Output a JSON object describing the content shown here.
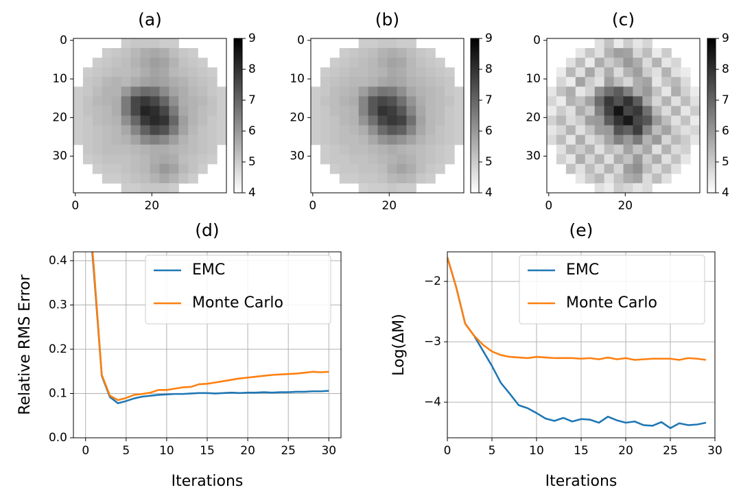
{
  "chart_data": [
    {
      "type": "heatmap",
      "title": "(a)",
      "colormap": "gray_r",
      "xlim": [
        -0.5,
        39.5
      ],
      "ylim": [
        39.5,
        -0.5
      ],
      "xticks": [
        0,
        20
      ],
      "yticks": [
        0,
        10,
        20,
        30
      ],
      "clim": [
        4,
        9
      ],
      "cticks": [
        4,
        5,
        6,
        7,
        8,
        9
      ],
      "z": [
        [
          null,
          null,
          null,
          null,
          null,
          5.0,
          5.1,
          5.1,
          5.1,
          5.0,
          5.0,
          null,
          null,
          null,
          null,
          null
        ],
        [
          null,
          null,
          null,
          5.0,
          5.1,
          5.2,
          5.4,
          5.6,
          5.7,
          5.6,
          5.3,
          5.1,
          5.0,
          null,
          null,
          null
        ],
        [
          null,
          null,
          5.0,
          5.1,
          5.2,
          5.3,
          5.5,
          5.7,
          5.9,
          5.8,
          5.5,
          5.2,
          5.1,
          5.0,
          null,
          null
        ],
        [
          null,
          5.0,
          5.1,
          5.2,
          5.3,
          5.3,
          5.4,
          5.6,
          5.8,
          5.7,
          5.4,
          5.3,
          5.2,
          5.1,
          5.0,
          null
        ],
        [
          null,
          5.1,
          5.2,
          5.4,
          5.5,
          5.4,
          5.6,
          5.8,
          5.9,
          5.8,
          5.6,
          5.5,
          5.3,
          5.2,
          5.1,
          null
        ],
        [
          5.0,
          5.1,
          5.3,
          5.5,
          5.5,
          6.0,
          6.6,
          6.9,
          6.8,
          6.3,
          5.8,
          5.6,
          5.4,
          5.3,
          5.1,
          5.0
        ],
        [
          5.0,
          5.2,
          5.4,
          5.5,
          5.6,
          6.6,
          7.6,
          7.9,
          7.6,
          7.0,
          6.2,
          5.6,
          5.5,
          5.4,
          5.2,
          5.0
        ],
        [
          5.0,
          5.2,
          5.3,
          5.4,
          5.6,
          6.6,
          7.6,
          8.3,
          8.1,
          7.6,
          6.6,
          5.7,
          5.5,
          5.3,
          5.2,
          5.0
        ],
        [
          5.0,
          5.1,
          5.3,
          5.4,
          5.5,
          6.2,
          7.0,
          7.9,
          8.2,
          8.0,
          7.0,
          5.9,
          5.5,
          5.3,
          5.1,
          5.0
        ],
        [
          5.0,
          5.1,
          5.2,
          5.3,
          5.4,
          5.7,
          6.4,
          7.1,
          7.6,
          7.4,
          6.6,
          5.8,
          5.4,
          5.2,
          5.1,
          5.0
        ],
        [
          5.0,
          5.1,
          5.2,
          5.3,
          5.4,
          5.5,
          5.8,
          6.3,
          6.5,
          6.3,
          5.9,
          5.5,
          5.3,
          5.2,
          5.1,
          5.0
        ],
        [
          null,
          5.1,
          5.2,
          5.3,
          5.3,
          5.3,
          5.4,
          5.5,
          5.6,
          5.6,
          5.5,
          5.4,
          5.3,
          5.2,
          5.1,
          null
        ],
        [
          null,
          5.0,
          5.1,
          5.2,
          5.2,
          5.2,
          5.3,
          5.4,
          5.6,
          5.7,
          5.6,
          5.3,
          5.2,
          5.1,
          5.0,
          null
        ],
        [
          null,
          null,
          5.0,
          5.1,
          5.1,
          5.2,
          5.3,
          5.4,
          5.7,
          6.0,
          5.8,
          5.4,
          5.2,
          5.0,
          null,
          null
        ],
        [
          null,
          null,
          null,
          5.0,
          5.0,
          5.1,
          5.2,
          5.3,
          5.5,
          5.7,
          5.5,
          5.2,
          5.0,
          null,
          null,
          null
        ],
        [
          null,
          null,
          null,
          null,
          null,
          5.0,
          5.0,
          5.1,
          5.1,
          5.1,
          5.0,
          null,
          null,
          null,
          null,
          null
        ]
      ]
    },
    {
      "type": "heatmap",
      "title": "(b)",
      "colormap": "gray_r",
      "xlim": [
        -0.5,
        39.5
      ],
      "ylim": [
        39.5,
        -0.5
      ],
      "xticks": [
        0,
        20
      ],
      "yticks": [
        0,
        10,
        20,
        30
      ],
      "clim": [
        4,
        9
      ],
      "cticks": [
        4,
        5,
        6,
        7,
        8,
        9
      ],
      "z": [
        [
          null,
          null,
          null,
          null,
          null,
          5.0,
          5.0,
          5.1,
          5.1,
          5.0,
          5.0,
          null,
          null,
          null,
          null,
          null
        ],
        [
          null,
          null,
          null,
          5.0,
          5.1,
          5.2,
          5.3,
          5.5,
          5.6,
          5.5,
          5.3,
          5.1,
          5.0,
          null,
          null,
          null
        ],
        [
          null,
          null,
          5.0,
          5.1,
          5.2,
          5.3,
          5.4,
          5.6,
          5.8,
          5.7,
          5.4,
          5.2,
          5.1,
          5.0,
          null,
          null
        ],
        [
          null,
          5.0,
          5.1,
          5.2,
          5.3,
          5.3,
          5.4,
          5.5,
          5.7,
          5.6,
          5.4,
          5.3,
          5.2,
          5.1,
          5.0,
          null
        ],
        [
          null,
          5.1,
          5.2,
          5.3,
          5.4,
          5.4,
          5.5,
          5.7,
          5.8,
          5.7,
          5.5,
          5.4,
          5.3,
          5.2,
          5.1,
          null
        ],
        [
          5.0,
          5.1,
          5.3,
          5.4,
          5.5,
          5.9,
          6.4,
          6.7,
          6.6,
          6.2,
          5.7,
          5.5,
          5.4,
          5.3,
          5.1,
          5.0
        ],
        [
          5.0,
          5.2,
          5.3,
          5.5,
          5.6,
          6.4,
          7.3,
          7.6,
          7.4,
          6.8,
          6.1,
          5.6,
          5.4,
          5.3,
          5.2,
          5.0
        ],
        [
          5.0,
          5.1,
          5.3,
          5.4,
          5.5,
          6.4,
          7.3,
          8.0,
          7.8,
          7.3,
          6.4,
          5.7,
          5.4,
          5.3,
          5.1,
          5.0
        ],
        [
          5.0,
          5.1,
          5.2,
          5.4,
          5.5,
          6.1,
          6.8,
          7.6,
          7.9,
          7.7,
          6.8,
          5.8,
          5.4,
          5.3,
          5.1,
          5.0
        ],
        [
          5.0,
          5.1,
          5.2,
          5.3,
          5.4,
          5.6,
          6.2,
          6.9,
          7.3,
          7.1,
          6.4,
          5.7,
          5.4,
          5.2,
          5.1,
          5.0
        ],
        [
          5.0,
          5.1,
          5.2,
          5.3,
          5.3,
          5.4,
          5.7,
          6.1,
          6.3,
          6.1,
          5.8,
          5.5,
          5.3,
          5.2,
          5.1,
          5.0
        ],
        [
          null,
          5.0,
          5.1,
          5.2,
          5.3,
          5.3,
          5.4,
          5.5,
          5.6,
          5.5,
          5.4,
          5.3,
          5.2,
          5.1,
          5.0,
          null
        ],
        [
          null,
          5.0,
          5.1,
          5.1,
          5.2,
          5.2,
          5.3,
          5.4,
          5.5,
          5.6,
          5.5,
          5.3,
          5.2,
          5.1,
          5.0,
          null
        ],
        [
          null,
          null,
          5.0,
          5.1,
          5.1,
          5.2,
          5.2,
          5.3,
          5.6,
          5.8,
          5.6,
          5.3,
          5.1,
          5.0,
          null,
          null
        ],
        [
          null,
          null,
          null,
          5.0,
          5.0,
          5.1,
          5.1,
          5.2,
          5.4,
          5.5,
          5.4,
          5.1,
          5.0,
          null,
          null,
          null
        ],
        [
          null,
          null,
          null,
          null,
          null,
          4.9,
          5.0,
          5.0,
          5.1,
          5.0,
          5.0,
          null,
          null,
          null,
          null,
          null
        ]
      ]
    },
    {
      "type": "heatmap",
      "title": "(c)",
      "colormap": "gray_r",
      "xlim": [
        -0.5,
        39.5
      ],
      "ylim": [
        39.5,
        -0.5
      ],
      "xticks": [
        0,
        20
      ],
      "yticks": [
        0,
        10,
        20,
        30
      ],
      "clim": [
        4,
        9
      ],
      "cticks": [
        4,
        5,
        6,
        7,
        8,
        9
      ],
      "z": [
        [
          null,
          null,
          null,
          null,
          null,
          4.6,
          5.2,
          4.4,
          5.0,
          4.5,
          4.8,
          null,
          null,
          null,
          null,
          null
        ],
        [
          null,
          null,
          null,
          4.5,
          5.1,
          4.6,
          5.5,
          5.9,
          5.8,
          4.8,
          5.3,
          4.4,
          5.0,
          null,
          null,
          null
        ],
        [
          null,
          null,
          4.6,
          5.3,
          4.4,
          5.6,
          5.0,
          5.4,
          6.0,
          5.6,
          4.7,
          5.5,
          4.5,
          4.8,
          null,
          null
        ],
        [
          null,
          4.4,
          5.4,
          4.6,
          5.7,
          4.8,
          5.6,
          4.7,
          5.5,
          5.9,
          5.0,
          4.6,
          5.5,
          4.6,
          4.4,
          null
        ],
        [
          null,
          4.8,
          4.4,
          5.8,
          5.0,
          4.6,
          5.9,
          5.3,
          4.8,
          5.6,
          5.8,
          4.5,
          5.1,
          5.4,
          4.7,
          null
        ],
        [
          4.5,
          5.2,
          5.6,
          4.5,
          4.9,
          6.2,
          6.8,
          7.2,
          6.5,
          5.6,
          6.0,
          5.2,
          4.5,
          5.6,
          4.9,
          4.4
        ],
        [
          4.8,
          4.4,
          5.5,
          5.2,
          5.8,
          6.9,
          7.9,
          7.4,
          8.0,
          7.2,
          5.7,
          4.8,
          5.5,
          4.6,
          5.3,
          4.6
        ],
        [
          4.4,
          5.0,
          4.6,
          5.6,
          5.1,
          6.5,
          7.7,
          8.6,
          7.6,
          7.9,
          6.8,
          5.4,
          4.7,
          5.5,
          4.5,
          5.0
        ],
        [
          4.9,
          5.4,
          4.7,
          5.0,
          5.9,
          6.0,
          7.2,
          8.0,
          8.5,
          7.6,
          7.3,
          6.0,
          5.3,
          4.6,
          5.2,
          4.4
        ],
        [
          4.5,
          4.8,
          5.5,
          4.6,
          5.2,
          5.9,
          6.0,
          7.4,
          7.1,
          7.8,
          6.4,
          5.3,
          5.8,
          5.0,
          4.6,
          4.8
        ],
        [
          4.7,
          5.3,
          4.5,
          5.6,
          4.7,
          5.1,
          5.8,
          6.5,
          6.0,
          6.6,
          5.5,
          6.0,
          4.8,
          5.4,
          5.0,
          4.5
        ],
        [
          null,
          4.6,
          5.4,
          5.0,
          5.5,
          4.6,
          5.3,
          5.0,
          5.8,
          5.2,
          5.7,
          4.6,
          5.5,
          4.7,
          4.9,
          null
        ],
        [
          null,
          4.9,
          4.5,
          5.6,
          4.8,
          5.5,
          4.6,
          5.6,
          5.2,
          6.0,
          5.0,
          5.6,
          4.6,
          5.2,
          4.5,
          null
        ],
        [
          null,
          null,
          5.2,
          4.6,
          5.3,
          4.7,
          5.5,
          4.8,
          5.9,
          6.2,
          5.3,
          4.7,
          5.3,
          4.6,
          null,
          null
        ],
        [
          null,
          null,
          null,
          4.5,
          5.0,
          5.4,
          4.6,
          5.2,
          5.6,
          5.8,
          4.7,
          5.3,
          4.6,
          null,
          null,
          null
        ],
        [
          null,
          null,
          null,
          null,
          null,
          4.6,
          4.4,
          5.0,
          4.8,
          4.5,
          4.7,
          null,
          null,
          null,
          null,
          null
        ]
      ]
    },
    {
      "type": "line",
      "title": "(d)",
      "xlabel": "Iterations",
      "ylabel": "Relative RMS Error",
      "grid": true,
      "legend": "upper right",
      "xlim": [
        -1.5,
        31.5
      ],
      "ylim": [
        0,
        0.42
      ],
      "xticks": [
        0,
        5,
        10,
        15,
        20,
        25,
        30
      ],
      "yticks": [
        {
          "value": 0,
          "label": "0.0"
        },
        0.1,
        0.2,
        0.3,
        0.4
      ],
      "x": [
        0,
        1,
        2,
        3,
        4,
        5,
        6,
        7,
        8,
        9,
        10,
        11,
        12,
        13,
        14,
        15,
        16,
        17,
        18,
        19,
        20,
        21,
        22,
        23,
        24,
        25,
        26,
        27,
        28,
        29,
        30
      ],
      "series": [
        {
          "name": "EMC",
          "color": "#1f77b4",
          "values": [
            0.6,
            0.38,
            0.14,
            0.092,
            0.078,
            0.083,
            0.089,
            0.093,
            0.095,
            0.097,
            0.098,
            0.099,
            0.099,
            0.1,
            0.101,
            0.101,
            0.1,
            0.101,
            0.102,
            0.101,
            0.102,
            0.102,
            0.103,
            0.102,
            0.103,
            0.103,
            0.104,
            0.104,
            0.105,
            0.105,
            0.106
          ]
        },
        {
          "name": "Monte Carlo",
          "color": "#ff7f0e",
          "values": [
            0.6,
            0.39,
            0.142,
            0.095,
            0.085,
            0.09,
            0.097,
            0.099,
            0.102,
            0.108,
            0.108,
            0.111,
            0.114,
            0.115,
            0.121,
            0.122,
            0.125,
            0.128,
            0.131,
            0.134,
            0.136,
            0.138,
            0.14,
            0.142,
            0.143,
            0.144,
            0.145,
            0.147,
            0.149,
            0.148,
            0.149
          ]
        }
      ]
    },
    {
      "type": "line",
      "title": "(e)",
      "xlabel": "Iterations",
      "ylabel": "Log(ΔM)",
      "grid": true,
      "legend": "upper right",
      "xlim": [
        0,
        30
      ],
      "ylim": [
        -4.59,
        -1.51
      ],
      "xticks": [
        0,
        5,
        10,
        15,
        20,
        25,
        30
      ],
      "yticks": [
        {
          "value": -4,
          "label": "−4"
        },
        {
          "value": -3,
          "label": "−3"
        },
        {
          "value": -2,
          "label": "−2"
        }
      ],
      "x": [
        0,
        1,
        2,
        3,
        4,
        5,
        6,
        7,
        8,
        9,
        10,
        11,
        12,
        13,
        14,
        15,
        16,
        17,
        18,
        19,
        20,
        21,
        22,
        23,
        24,
        25,
        26,
        27,
        28,
        29
      ],
      "series": [
        {
          "name": "EMC",
          "color": "#1f77b4",
          "values": [
            -1.6,
            -2.1,
            -2.7,
            -2.9,
            -3.15,
            -3.4,
            -3.68,
            -3.86,
            -4.05,
            -4.1,
            -4.18,
            -4.27,
            -4.31,
            -4.26,
            -4.32,
            -4.28,
            -4.29,
            -4.34,
            -4.24,
            -4.3,
            -4.34,
            -4.32,
            -4.38,
            -4.39,
            -4.33,
            -4.43,
            -4.35,
            -4.38,
            -4.37,
            -4.34
          ]
        },
        {
          "name": "Monte Carlo",
          "color": "#ff7f0e",
          "values": [
            -1.6,
            -2.1,
            -2.7,
            -2.9,
            -3.05,
            -3.16,
            -3.22,
            -3.25,
            -3.26,
            -3.27,
            -3.25,
            -3.26,
            -3.27,
            -3.27,
            -3.27,
            -3.28,
            -3.27,
            -3.29,
            -3.26,
            -3.29,
            -3.27,
            -3.3,
            -3.29,
            -3.28,
            -3.28,
            -3.28,
            -3.3,
            -3.27,
            -3.28,
            -3.3
          ]
        }
      ]
    }
  ]
}
